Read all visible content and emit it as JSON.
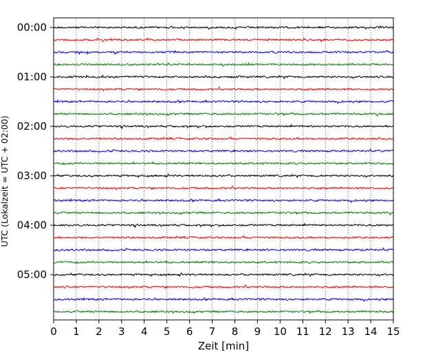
{
  "chart_data": {
    "type": "line",
    "subtype": "seismic-helicorder",
    "xlabel": "Zeit  [min]",
    "ylabel": "UTC (Lokalzeit = UTC + 02:00)",
    "xlim": [
      0,
      15
    ],
    "x_ticks": [
      "0",
      "1",
      "2",
      "3",
      "4",
      "5",
      "6",
      "7",
      "8",
      "9",
      "10",
      "11",
      "12",
      "13",
      "14",
      "15"
    ],
    "x_grid": "dotted vertical at each minute",
    "y_ticks": [
      "00:00",
      "01:00",
      "02:00",
      "03:00",
      "04:00",
      "05:00"
    ],
    "trace_interval_minutes": 15,
    "trace_count": 24,
    "trace_colors": [
      "#000000",
      "#ff0000",
      "#0000ff",
      "#008000"
    ]
  }
}
